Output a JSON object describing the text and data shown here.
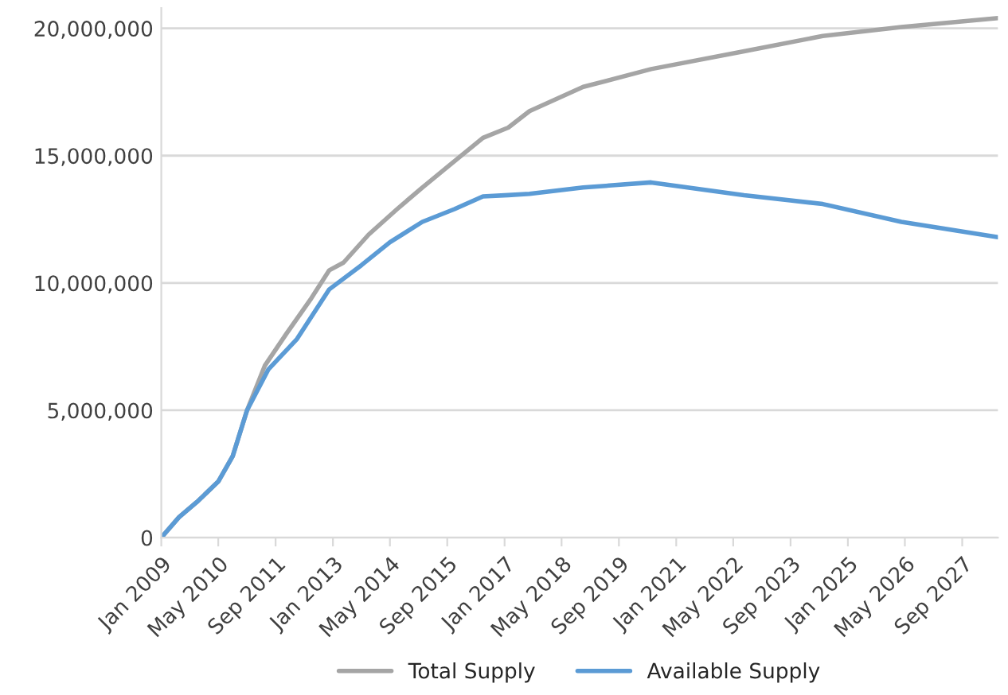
{
  "chart_data": {
    "type": "line",
    "xlim": [
      "2009-01",
      "2028-07"
    ],
    "xticks": [
      {
        "value": "2009-01",
        "label": "Jan 2009"
      },
      {
        "value": "2010-05",
        "label": "May 2010"
      },
      {
        "value": "2011-09",
        "label": "Sep 2011"
      },
      {
        "value": "2013-01",
        "label": "Jan 2013"
      },
      {
        "value": "2014-05",
        "label": "May 2014"
      },
      {
        "value": "2015-09",
        "label": "Sep 2015"
      },
      {
        "value": "2017-01",
        "label": "Jan 2017"
      },
      {
        "value": "2018-05",
        "label": "May 2018"
      },
      {
        "value": "2019-09",
        "label": "Sep 2019"
      },
      {
        "value": "2021-01",
        "label": "Jan 2021"
      },
      {
        "value": "2022-05",
        "label": "May 2022"
      },
      {
        "value": "2023-09",
        "label": "Sep 2023"
      },
      {
        "value": "2025-01",
        "label": "Jan 2025"
      },
      {
        "value": "2026-05",
        "label": "May 2026"
      },
      {
        "value": "2027-09",
        "label": "Sep 2027"
      }
    ],
    "ylim": [
      0,
      20800000
    ],
    "yticks": [
      {
        "value": 0,
        "label": "0"
      },
      {
        "value": 5000000,
        "label": "5,000,000"
      },
      {
        "value": 10000000,
        "label": "10,000,000"
      },
      {
        "value": 15000000,
        "label": "15,000,000"
      },
      {
        "value": 20000000,
        "label": "20,000,000"
      }
    ],
    "grid": "y",
    "legend": "bottom",
    "series": [
      {
        "name": "Total Supply",
        "color": "#a5a5a5",
        "x": [
          "2009-01",
          "2009-06",
          "2009-11",
          "2010-05",
          "2010-09",
          "2011-01",
          "2011-06",
          "2011-12",
          "2012-07",
          "2012-12",
          "2013-04",
          "2013-11",
          "2014-07",
          "2015-02",
          "2015-09",
          "2016-07",
          "2017-02",
          "2017-08",
          "2018-11",
          "2020-06",
          "2022-08",
          "2024-06",
          "2026-04",
          "2028-07"
        ],
        "values": [
          0,
          800000,
          1400000,
          2200000,
          3200000,
          5000000,
          6750000,
          8000000,
          9400000,
          10500000,
          10800000,
          11900000,
          12900000,
          13750000,
          14550000,
          15700000,
          16100000,
          16750000,
          17700000,
          18400000,
          19100000,
          19700000,
          20050000,
          20400000
        ]
      },
      {
        "name": "Available Supply",
        "color": "#5b9bd5",
        "x": [
          "2009-01",
          "2009-06",
          "2009-11",
          "2010-05",
          "2010-09",
          "2011-01",
          "2011-07",
          "2012-03",
          "2012-12",
          "2013-09",
          "2014-05",
          "2015-02",
          "2015-11",
          "2016-07",
          "2017-02",
          "2017-08",
          "2018-11",
          "2020-06",
          "2022-08",
          "2024-06",
          "2026-04",
          "2028-07"
        ],
        "values": [
          0,
          800000,
          1400000,
          2200000,
          3200000,
          5000000,
          6600000,
          7800000,
          9750000,
          10700000,
          11600000,
          12400000,
          12900000,
          13400000,
          13450000,
          13500000,
          13750000,
          13950000,
          13450000,
          13100000,
          12400000,
          11800000
        ]
      }
    ]
  }
}
